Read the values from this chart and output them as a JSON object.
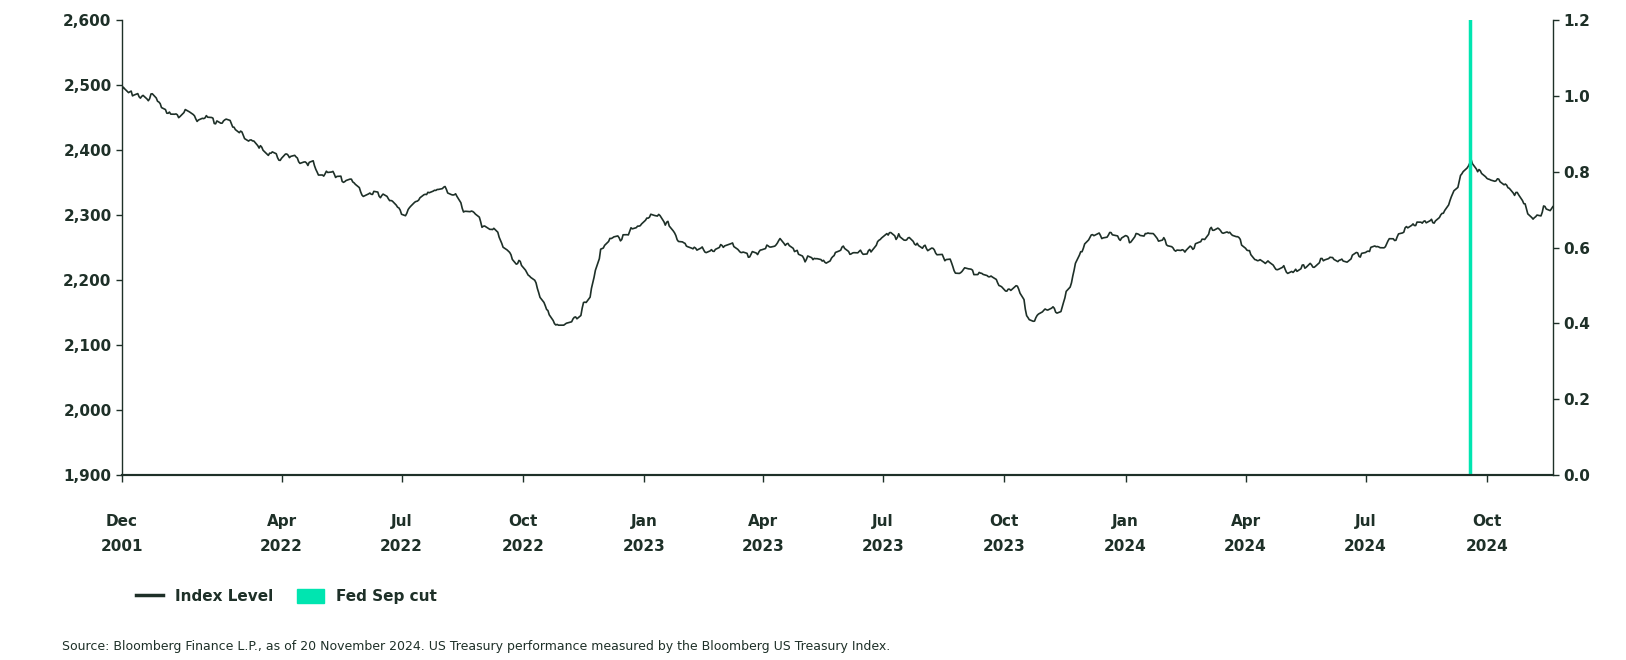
{
  "ylim_left": [
    1900,
    2600
  ],
  "ylim_right": [
    0.0,
    1.2
  ],
  "yticks_left": [
    1900,
    2000,
    2100,
    2200,
    2300,
    2400,
    2500,
    2600
  ],
  "yticks_right": [
    0.0,
    0.2,
    0.4,
    0.6,
    0.8,
    1.0,
    1.2
  ],
  "line_color": "#1e3028",
  "fed_cut_color": "#00e5b0",
  "source_text": "Source: Bloomberg Finance L.P., as of 20 November 2024. US Treasury performance measured by the Bloomberg US Treasury Index.",
  "legend_items": [
    "Index Level",
    "Fed Sep cut"
  ],
  "background_color": "#ffffff",
  "xtick_months": [
    "Dec",
    "Apr",
    "Jul",
    "Oct",
    "Jan",
    "Apr",
    "Jul",
    "Oct",
    "Jan",
    "Apr",
    "Jul",
    "Oct"
  ],
  "xtick_years": [
    "2001",
    "2022",
    "2022",
    "2022",
    "2023",
    "2023",
    "2023",
    "2023",
    "2024",
    "2024",
    "2024",
    "2024"
  ],
  "font_color": "#1e3028",
  "axis_color": "#1e3028",
  "spine_color": "#1e3028"
}
